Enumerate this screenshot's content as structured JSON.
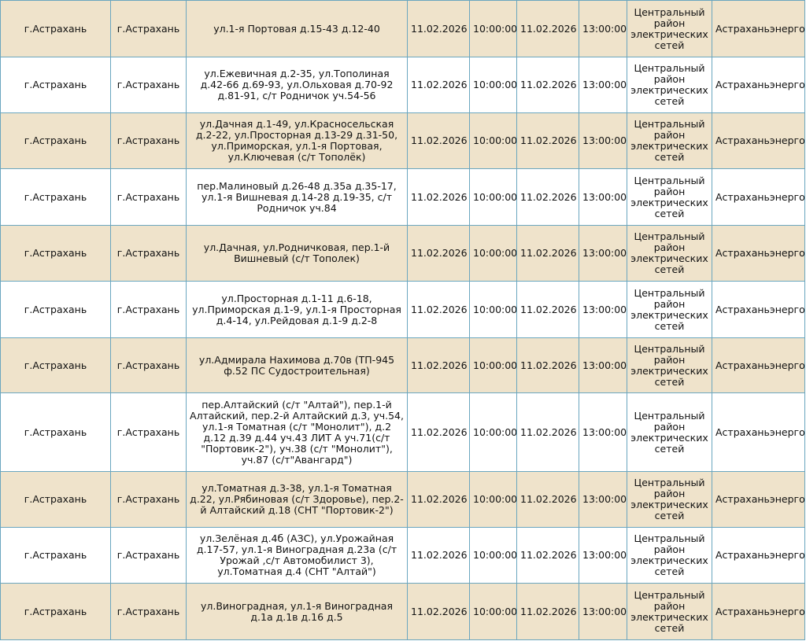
{
  "table": {
    "rows": [
      [
        "г.Астрахань",
        "г.Астрахань",
        "ул.1-я Портовая д.15-43 д.12-40",
        "11.02.2026",
        "10:00:00",
        "11.02.2026",
        "13:00:00",
        "Центральный район электрических сетей",
        "Астраханьэнерго"
      ],
      [
        "г.Астрахань",
        "г.Астрахань",
        "ул.Ежевичная д.2-35, ул.Тополиная д.42-66 д.69-93, ул.Ольховая д.70-92 д.81-91, с/т Родничок уч.54-56",
        "11.02.2026",
        "10:00:00",
        "11.02.2026",
        "13:00:00",
        "Центральный район электрических сетей",
        "Астраханьэнерго"
      ],
      [
        "г.Астрахань",
        "г.Астрахань",
        "ул.Дачная д.1-49, ул.Красносельская д.2-22, ул.Просторная д.13-29 д.31-50, ул.Приморская, ул.1-я Портовая, ул.Ключевая (с/т Тополёк)",
        "11.02.2026",
        "10:00:00",
        "11.02.2026",
        "13:00:00",
        "Центральный район электрических сетей",
        "Астраханьэнерго"
      ],
      [
        "г.Астрахань",
        "г.Астрахань",
        "пер.Малиновый д.26-48 д.35а д.35-17, ул.1-я Вишневая д.14-28 д.19-35, с/т Родничок уч.84",
        "11.02.2026",
        "10:00:00",
        "11.02.2026",
        "13:00:00",
        "Центральный район электрических сетей",
        "Астраханьэнерго"
      ],
      [
        "г.Астрахань",
        "г.Астрахань",
        "ул.Дачная, ул.Родничковая, пер.1-й Вишневый (с/т Тополек)",
        "11.02.2026",
        "10:00:00",
        "11.02.2026",
        "13:00:00",
        "Центральный район электрических сетей",
        "Астраханьэнерго"
      ],
      [
        "г.Астрахань",
        "г.Астрахань",
        "ул.Просторная д.1-11 д.6-18, ул.Приморская д.1-9, ул.1-я Просторная д.4-14, ул.Рейдовая д.1-9 д.2-8",
        "11.02.2026",
        "10:00:00",
        "11.02.2026",
        "13:00:00",
        "Центральный район электрических сетей",
        "Астраханьэнерго"
      ],
      [
        "г.Астрахань",
        "г.Астрахань",
        "ул.Адмирала Нахимова д.70в (ТП-945 ф.52 ПС Судостроительная)",
        "11.02.2026",
        "10:00:00",
        "11.02.2026",
        "13:00:00",
        "Центральный район электрических сетей",
        "Астраханьэнерго"
      ],
      [
        "г.Астрахань",
        "г.Астрахань",
        "пер.Алтайский (с/т \"Алтай\"), пер.1-й Алтайский, пер.2-й Алтайский д.3, уч.54, ул.1-я Томатная (с/т \"Монолит\"), д.2 д.12 д.39 д.44 уч.43 ЛИТ А уч.71(с/т \"Портовик-2\"), уч.38 (с/т \"Монолит\"), уч.87 (с/т\"Авангард\")",
        "11.02.2026",
        "10:00:00",
        "11.02.2026",
        "13:00:00",
        "Центральный район электрических сетей",
        "Астраханьэнерго"
      ],
      [
        "г.Астрахань",
        "г.Астрахань",
        "ул.Томатная д.3-38, ул.1-я Томатная д.22, ул.Рябиновая (с/т Здоровье), пер.2-й Алтайский д.18 (СНТ \"Портовик-2\")",
        "11.02.2026",
        "10:00:00",
        "11.02.2026",
        "13:00:00",
        "Центральный район электрических сетей",
        "Астраханьэнерго"
      ],
      [
        "г.Астрахань",
        "г.Астрахань",
        "ул.Зелёная д.4б (АЗС), ул.Урожайная д.17-57, ул.1-я Виноградная д.23а (с/т Урожай ,с/т Автомобилист 3), ул.Томатная д.4 (СНТ \"Алтай\")",
        "11.02.2026",
        "10:00:00",
        "11.02.2026",
        "13:00:00",
        "Центральный район электрических сетей",
        "Астраханьэнерго"
      ],
      [
        "г.Астрахань",
        "г.Астрахань",
        "ул.Виноградная, ул.1-я Виноградная д.1а д.1в д.16 д.5",
        "11.02.2026",
        "10:00:00",
        "11.02.2026",
        "13:00:00",
        "Центральный район электрических сетей",
        "Астраханьэнерго"
      ]
    ]
  }
}
